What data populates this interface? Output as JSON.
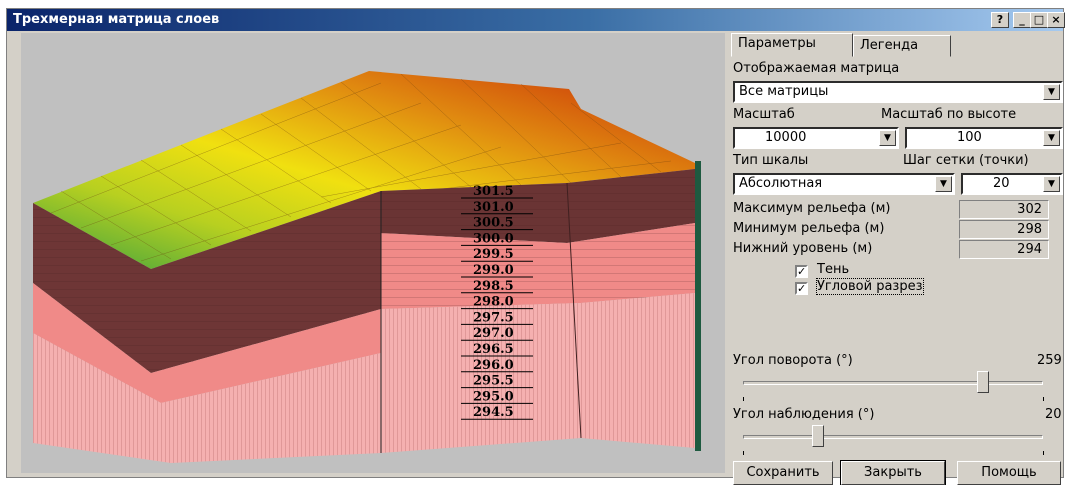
{
  "window": {
    "title": "Трехмерная матрица слоев",
    "help_label": "?",
    "minimize_label": "_",
    "maximize_label": "□",
    "close_label": "×"
  },
  "tabs": [
    {
      "label": "Параметры",
      "active": true
    },
    {
      "label": "Легенда",
      "active": false
    }
  ],
  "params": {
    "matrix_label": "Отображаемая матрица",
    "matrix_value": "Все матрицы",
    "scale_label": "Масштаб",
    "scale_value": "10000",
    "height_scale_label": "Масштаб по высоте",
    "height_scale_value": "100",
    "scale_type_label": "Тип шкалы",
    "scale_type_value": "Абсолютная",
    "grid_step_label": "Шаг сетки (точки)",
    "grid_step_value": "20",
    "relief_max_label": "Максимум рельефа (м)",
    "relief_max_value": "302",
    "relief_min_label": "Минимум рельефа (м)",
    "relief_min_value": "298",
    "bottom_level_label": "Нижний уровень (м)",
    "bottom_level_value": "294",
    "shadow_label": "Тень",
    "shadow_checked": true,
    "corner_cut_label": "Угловой разрез",
    "corner_cut_checked": true,
    "rotation_label": "Угол поворота (°)",
    "rotation_value": "259",
    "rotation_fraction": 0.8,
    "view_angle_label": "Угол наблюдения (°)",
    "view_angle_value": "20",
    "view_angle_fraction": 0.25
  },
  "buttons": {
    "save_label": "Сохранить",
    "close_label": "Закрыть",
    "help_label": "Помощь"
  },
  "scale_labels": [
    "301.5",
    "301.0",
    "300.5",
    "300.0",
    "299.5",
    "299.0",
    "298.5",
    "298.0",
    "297.5",
    "297.0",
    "296.5",
    "296.0",
    "295.5",
    "295.0",
    "294.5"
  ],
  "colors": {
    "layer_dark": "#6e3636",
    "layer_pink": "#f08a88",
    "layer_light": "#f5b0b0",
    "background": "#c0c0c0"
  }
}
